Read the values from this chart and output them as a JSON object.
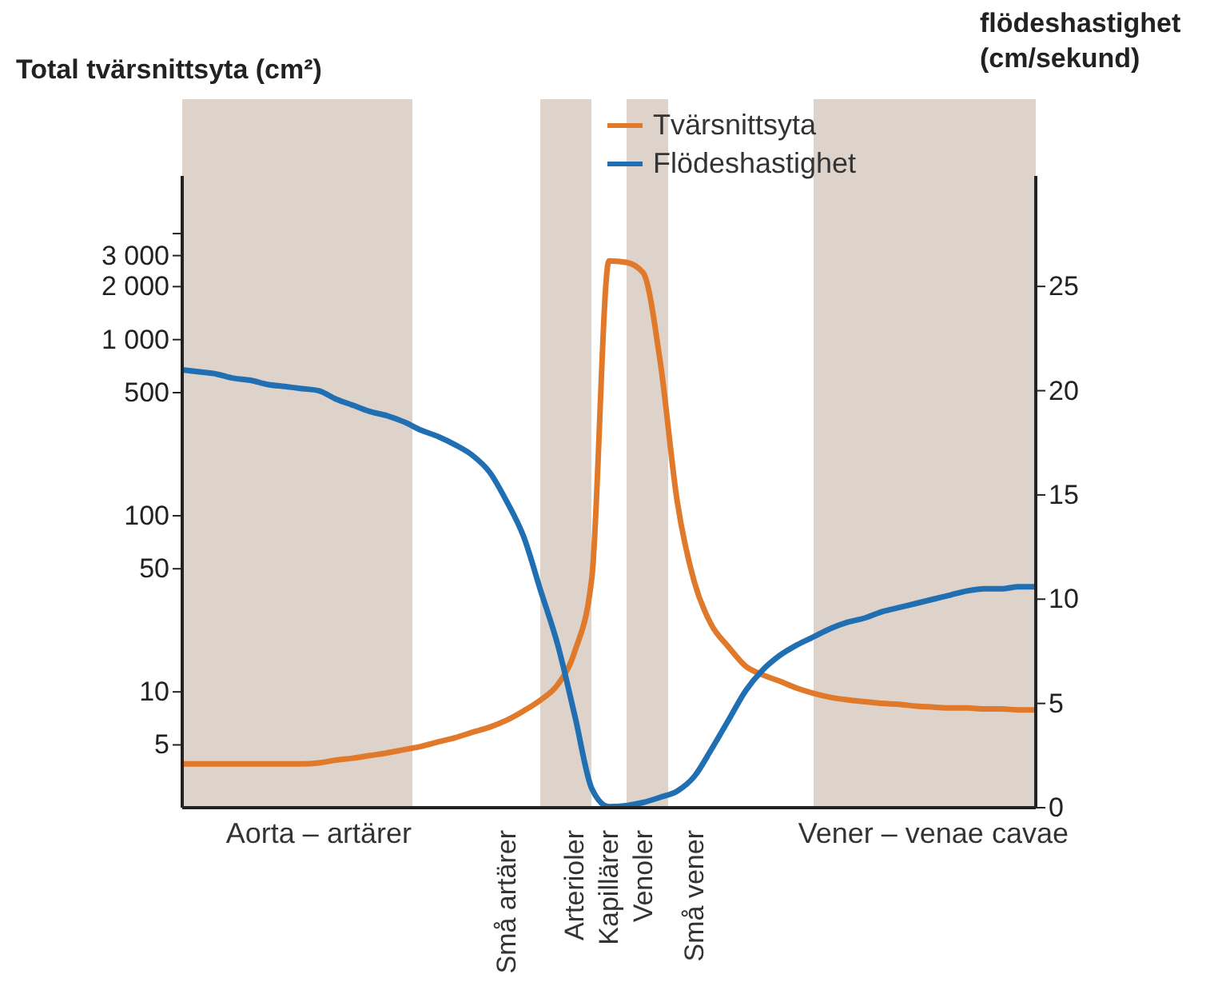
{
  "chart_data": {
    "type": "line",
    "ylabel": "Total tvärsnittsyta (cm²)",
    "y2label": "flödeshastighet (cm/sekund)",
    "log": "y",
    "categories": [
      null,
      null,
      null,
      null,
      null,
      null,
      null,
      null,
      "Aorta – artärer",
      null,
      null,
      null,
      null,
      null,
      null,
      null,
      null,
      null,
      null,
      "Små artärer",
      null,
      null,
      null,
      "Arterioler",
      null,
      "Kapillärer",
      null,
      "Venoler",
      null,
      null,
      "Små vener",
      null,
      null,
      null,
      null,
      null,
      null,
      null,
      null,
      null,
      null,
      null,
      null,
      null,
      "Vener – venae cavae",
      null,
      null,
      null,
      null,
      null,
      null
    ],
    "ylim": [
      2.2,
      8500
    ],
    "yticks": [
      5,
      10,
      50,
      100,
      500,
      {
        "value": 1000,
        "label": "1 000"
      },
      {
        "value": 2000,
        "label": "2 000"
      },
      {
        "value": 3000,
        "label": "3 000"
      },
      {
        "value": 4000,
        "label": null
      }
    ],
    "y2lim": [
      0,
      30.3
    ],
    "y2ticks": [
      0,
      5,
      10,
      15,
      20,
      25
    ],
    "series": [
      {
        "name": "Tvärsnittsyta",
        "color": "#e07a2a",
        "values": [
          3.9,
          3.9,
          3.9,
          3.9,
          3.9,
          3.9,
          3.9,
          3.9,
          3.95,
          4.1,
          4.2,
          4.35,
          4.5,
          4.7,
          4.9,
          5.2,
          5.5,
          5.9,
          6.3,
          6.9,
          7.8,
          9,
          11,
          17,
          45,
          2800,
          2750,
          2400,
          750,
          120,
          42,
          24,
          18,
          14,
          12.5,
          11.5,
          10.5,
          9.8,
          9.3,
          9,
          8.8,
          8.6,
          8.5,
          8.3,
          8.2,
          8.1,
          8.1,
          8,
          8,
          7.9,
          7.9
        ]
      },
      {
        "name": "Flödeshastighet",
        "color": "#1f6fb2",
        "axis": "y2",
        "values": [
          21,
          20.9,
          20.8,
          20.6,
          20.5,
          20.3,
          20.2,
          20.1,
          20,
          19.6,
          19.3,
          19,
          18.8,
          18.5,
          18.1,
          17.8,
          17.4,
          16.9,
          16.1,
          14.7,
          13,
          10.4,
          7.8,
          4.4,
          0.9,
          0.05,
          0.1,
          0.25,
          0.5,
          0.8,
          1.5,
          2.8,
          4.2,
          5.6,
          6.6,
          7.3,
          7.8,
          8.2,
          8.6,
          8.9,
          9.1,
          9.4,
          9.6,
          9.8,
          10,
          10.2,
          10.4,
          10.5,
          10.5,
          10.6,
          10.6
        ]
      }
    ],
    "legend": "top",
    "grid": false
  }
}
